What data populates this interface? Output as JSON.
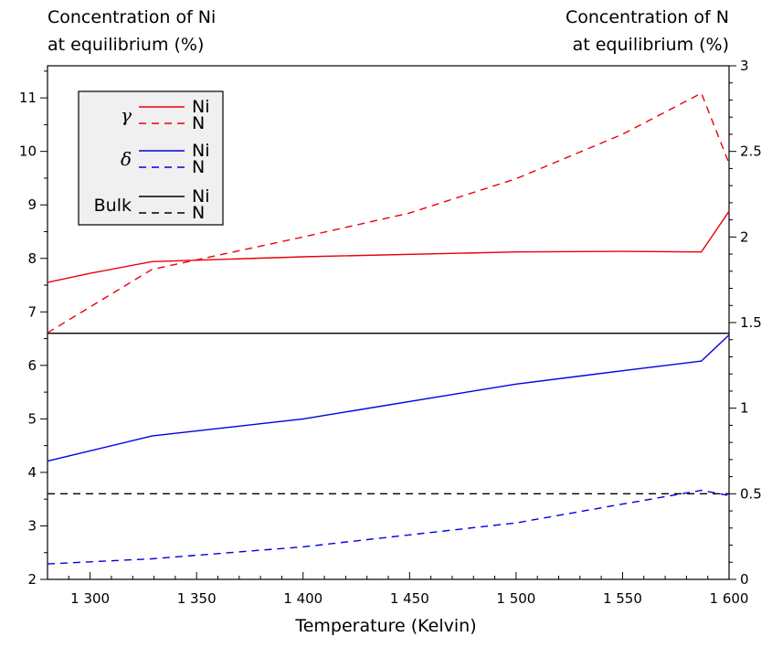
{
  "chart_data": {
    "type": "line",
    "title": "",
    "xlabel": "Temperature (Kelvin)",
    "ylabel_left": [
      "Concentration of Ni",
      "at equilibrium (%)"
    ],
    "ylabel_right": [
      "Concentration of N",
      "at equilibrium (%)"
    ],
    "xlim": [
      1280,
      1600
    ],
    "ylim_left": [
      2,
      11.6
    ],
    "ylim_right": [
      0,
      3
    ],
    "x_ticks": [
      1300,
      1350,
      1400,
      1450,
      1500,
      1550,
      1600
    ],
    "x_tick_labels": [
      "1 300",
      "1 350",
      "1 400",
      "1 450",
      "1 500",
      "1 550",
      "1 600"
    ],
    "y_left_ticks": [
      2,
      3,
      4,
      5,
      6,
      7,
      8,
      9,
      10,
      11
    ],
    "y_left_tick_labels": [
      "2",
      "3",
      "4",
      "5",
      "6",
      "7",
      "8",
      "9",
      "10",
      "11"
    ],
    "y_right_ticks": [
      0,
      0.5,
      1,
      1.5,
      2,
      2.5,
      3
    ],
    "y_right_tick_labels": [
      "0",
      "0.5",
      "1",
      "1.5",
      "2",
      "2.5",
      "3"
    ],
    "grid": false,
    "legend_position": "top-left",
    "series": [
      {
        "name": "Ni",
        "group": "γ",
        "color": "#e8000b",
        "dash": "solid",
        "axis": "left",
        "x": [
          1280,
          1300,
          1329,
          1400,
          1500,
          1550,
          1587,
          1600
        ],
        "y": [
          7.55,
          7.72,
          7.94,
          8.03,
          8.12,
          8.13,
          8.12,
          8.88
        ]
      },
      {
        "name": "N",
        "group": "γ",
        "color": "#e8000b",
        "dash": "dashed",
        "axis": "right",
        "x": [
          1280,
          1329,
          1400,
          1450,
          1500,
          1550,
          1587,
          1600
        ],
        "y": [
          1.44,
          1.81,
          2.0,
          2.14,
          2.34,
          2.6,
          2.84,
          2.43
        ]
      },
      {
        "name": "Ni",
        "group": "δ",
        "color": "#0000e0",
        "dash": "solid",
        "axis": "left",
        "x": [
          1280,
          1329,
          1400,
          1500,
          1550,
          1587,
          1600
        ],
        "y": [
          4.21,
          4.68,
          5.0,
          5.65,
          5.9,
          6.08,
          6.57
        ]
      },
      {
        "name": "N",
        "group": "δ",
        "color": "#0000e0",
        "dash": "dashed",
        "axis": "right",
        "x": [
          1280,
          1329,
          1400,
          1450,
          1500,
          1550,
          1587,
          1600
        ],
        "y": [
          0.09,
          0.12,
          0.19,
          0.26,
          0.33,
          0.44,
          0.52,
          0.49
        ]
      },
      {
        "name": "Ni",
        "group": "Bulk",
        "color": "#000000",
        "dash": "solid",
        "axis": "left",
        "x": [
          1280,
          1600
        ],
        "y": [
          6.6,
          6.6
        ]
      },
      {
        "name": "N",
        "group": "Bulk",
        "color": "#000000",
        "dash": "dashed",
        "axis": "right",
        "x": [
          1280,
          1600
        ],
        "y": [
          0.5,
          0.5
        ]
      }
    ],
    "legend": {
      "groups": [
        {
          "label": "γ",
          "greek": true,
          "entries": [
            "Ni",
            "N"
          ],
          "color": "#e8000b"
        },
        {
          "label": "δ",
          "greek": true,
          "entries": [
            "Ni",
            "N"
          ],
          "color": "#0000e0"
        },
        {
          "label": "Bulk",
          "greek": false,
          "entries": [
            "Ni",
            "N"
          ],
          "color": "#000000"
        }
      ]
    }
  }
}
